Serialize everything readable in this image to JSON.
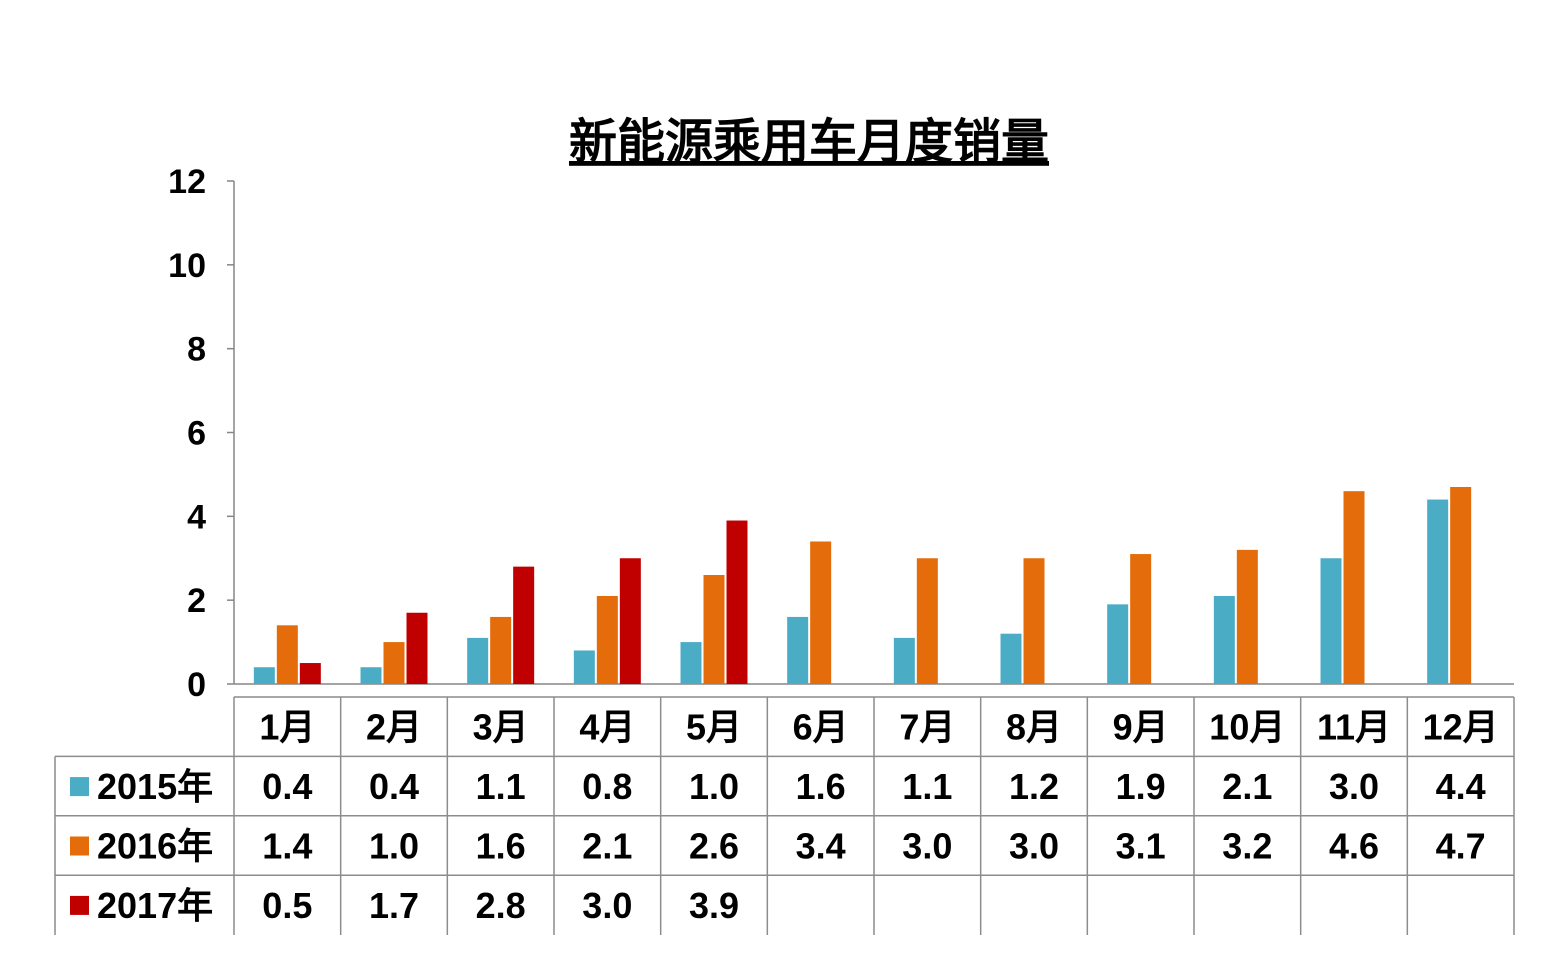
{
  "chart_data": {
    "type": "bar",
    "title": "新能源乘用车月度销量",
    "categories": [
      "1月",
      "2月",
      "3月",
      "4月",
      "5月",
      "6月",
      "7月",
      "8月",
      "9月",
      "10月",
      "11月",
      "12月"
    ],
    "ylim": [
      0,
      12
    ],
    "yticks": [
      "0",
      "2",
      "4",
      "6",
      "8",
      "10",
      "12"
    ],
    "grid": false,
    "legend": "data-table-left",
    "series": [
      {
        "name": "2015年",
        "color": "#4bacc6",
        "values": [
          0.4,
          0.4,
          1.1,
          0.8,
          1.0,
          1.6,
          1.1,
          1.2,
          1.9,
          2.1,
          3.0,
          4.4
        ],
        "labels": [
          "0.4",
          "0.4",
          "1.1",
          "0.8",
          "1.0",
          "1.6",
          "1.1",
          "1.2",
          "1.9",
          "2.1",
          "3.0",
          "4.4"
        ]
      },
      {
        "name": "2016年",
        "color": "#e46c0a",
        "values": [
          1.4,
          1.0,
          1.6,
          2.1,
          2.6,
          3.4,
          3.0,
          3.0,
          3.1,
          3.2,
          4.6,
          4.7
        ],
        "labels": [
          "1.4",
          "1.0",
          "1.6",
          "2.1",
          "2.6",
          "3.4",
          "3.0",
          "3.0",
          "3.1",
          "3.2",
          "4.6",
          "4.7"
        ]
      },
      {
        "name": "2017年",
        "color": "#c00000",
        "values": [
          0.5,
          1.7,
          2.8,
          3.0,
          3.9,
          null,
          null,
          null,
          null,
          null,
          null,
          null
        ],
        "labels": [
          "0.5",
          "1.7",
          "2.8",
          "3.0",
          "3.9",
          "",
          "",
          "",
          "",
          "",
          "",
          ""
        ]
      }
    ]
  }
}
